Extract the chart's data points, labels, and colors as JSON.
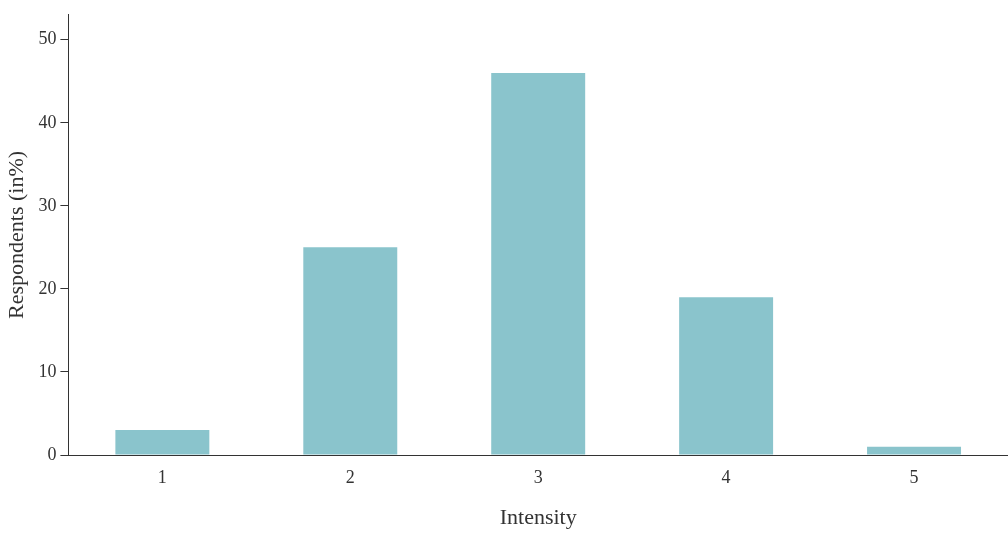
{
  "chart_data": {
    "type": "bar",
    "xlabel": "Intensity",
    "ylabel": "Respondents (in%)",
    "categories": [
      "1",
      "2",
      "3",
      "4",
      "5"
    ],
    "values": [
      3,
      25,
      46,
      19,
      1
    ],
    "color": "#8ac4cc",
    "ylim": [
      0,
      53
    ],
    "yticks": [
      0,
      10,
      20,
      30,
      40,
      50
    ],
    "grid": false,
    "legend": false
  }
}
